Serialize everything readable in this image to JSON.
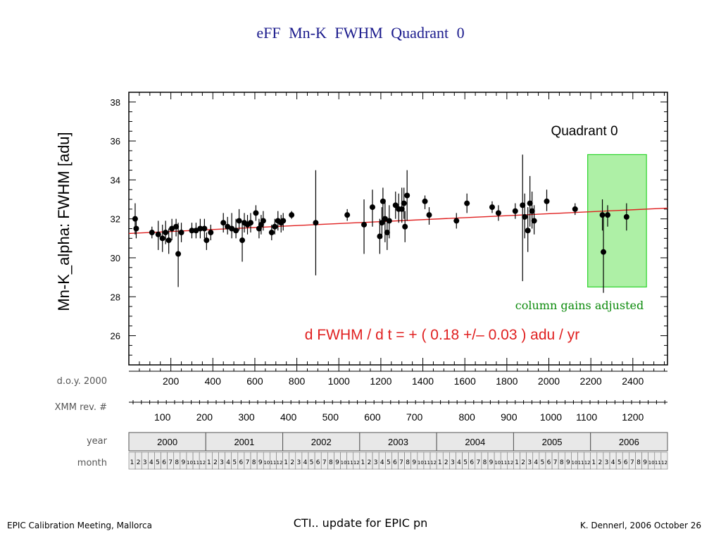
{
  "slide": {
    "title": "eFF   Mn-K   FWHM   Quadrant 0"
  },
  "chart_data": {
    "type": "scatter",
    "ylabel": "Mn-K_alpha:  FWHM  [adu]",
    "ylim": [
      24.5,
      38.5
    ],
    "xlim": [
      0,
      2565
    ],
    "yticks": [
      26,
      28,
      30,
      32,
      34,
      36,
      38
    ],
    "quadrant_label": "Quadrant 0",
    "annotation": "column gains adjusted",
    "fit_label": "d FWHM / d t  = +  ( 0.18 +/– 0.03 )  adu / yr",
    "fit_line": {
      "x": [
        0,
        2565
      ],
      "y": [
        31.25,
        32.55
      ]
    },
    "highlight_region": {
      "x": [
        2185,
        2465
      ],
      "y": [
        28.5,
        35.3
      ]
    },
    "colors": {
      "points": "#000000",
      "fit": "#e02020",
      "highlight_fill": "#aef0a6",
      "highlight_border": "#2bd42b",
      "annotation": "#0b8a0b",
      "fit_label": "#e02020"
    },
    "doy_axis": {
      "label": "d.o.y. 2000",
      "ticks": [
        200,
        400,
        600,
        800,
        1000,
        1200,
        1400,
        1600,
        1800,
        2000,
        2200,
        2400
      ]
    },
    "rev_axis": {
      "label": "XMM rev. #",
      "ticks": [
        "100",
        "200",
        "300",
        "400",
        "500",
        "600",
        "700",
        "800",
        "900",
        "1000",
        "1100",
        "1200"
      ],
      "tick_doy": [
        160,
        360,
        560,
        760,
        960,
        1160,
        1360,
        1610,
        1810,
        2010,
        2180,
        2400
      ]
    },
    "year_axis": {
      "label": "year",
      "years": [
        "2000",
        "2001",
        "2002",
        "2003",
        "2004",
        "2005",
        "2006"
      ]
    },
    "month_axis": {
      "label": "month",
      "months": [
        "1",
        "2",
        "3",
        "4",
        "5",
        "6",
        "7",
        "8",
        "9",
        "10",
        "11",
        "12"
      ]
    },
    "points": [
      {
        "x": 30,
        "y": 32.0,
        "lo": 31.2,
        "hi": 32.8
      },
      {
        "x": 35,
        "y": 31.5,
        "lo": 31.0,
        "hi": 32.0
      },
      {
        "x": 110,
        "y": 31.3,
        "lo": 31.0,
        "hi": 31.6
      },
      {
        "x": 140,
        "y": 31.2,
        "lo": 30.4,
        "hi": 31.9
      },
      {
        "x": 160,
        "y": 31.0,
        "lo": 30.3,
        "hi": 31.7
      },
      {
        "x": 175,
        "y": 31.3,
        "lo": 30.7,
        "hi": 31.9
      },
      {
        "x": 190,
        "y": 30.9,
        "lo": 30.2,
        "hi": 31.5
      },
      {
        "x": 205,
        "y": 31.5,
        "lo": 30.9,
        "hi": 32.0
      },
      {
        "x": 225,
        "y": 31.6,
        "lo": 31.1,
        "hi": 32.0
      },
      {
        "x": 235,
        "y": 30.2,
        "lo": 28.5,
        "hi": 31.8
      },
      {
        "x": 250,
        "y": 31.3,
        "lo": 30.8,
        "hi": 31.8
      },
      {
        "x": 300,
        "y": 31.4,
        "lo": 31.0,
        "hi": 31.8
      },
      {
        "x": 320,
        "y": 31.4,
        "lo": 31.0,
        "hi": 31.8
      },
      {
        "x": 340,
        "y": 31.5,
        "lo": 31.0,
        "hi": 32.0
      },
      {
        "x": 360,
        "y": 31.5,
        "lo": 31.0,
        "hi": 32.0
      },
      {
        "x": 370,
        "y": 30.9,
        "lo": 30.4,
        "hi": 31.3
      },
      {
        "x": 390,
        "y": 31.3,
        "lo": 30.9,
        "hi": 31.7
      },
      {
        "x": 450,
        "y": 31.8,
        "lo": 31.3,
        "hi": 32.3
      },
      {
        "x": 470,
        "y": 31.6,
        "lo": 31.2,
        "hi": 32.1
      },
      {
        "x": 490,
        "y": 31.5,
        "lo": 31.0,
        "hi": 32.3
      },
      {
        "x": 510,
        "y": 31.4,
        "lo": 31.0,
        "hi": 32.0
      },
      {
        "x": 525,
        "y": 31.9,
        "lo": 31.4,
        "hi": 32.5
      },
      {
        "x": 540,
        "y": 30.9,
        "lo": 29.8,
        "hi": 31.9
      },
      {
        "x": 550,
        "y": 31.8,
        "lo": 31.3,
        "hi": 32.3
      },
      {
        "x": 565,
        "y": 31.7,
        "lo": 31.2,
        "hi": 32.2
      },
      {
        "x": 580,
        "y": 31.8,
        "lo": 31.3,
        "hi": 32.3
      },
      {
        "x": 605,
        "y": 32.3,
        "lo": 31.9,
        "hi": 32.7
      },
      {
        "x": 620,
        "y": 31.5,
        "lo": 31.0,
        "hi": 32.0
      },
      {
        "x": 630,
        "y": 31.7,
        "lo": 31.2,
        "hi": 32.2
      },
      {
        "x": 640,
        "y": 31.9,
        "lo": 31.4,
        "hi": 32.4
      },
      {
        "x": 680,
        "y": 31.3,
        "lo": 30.9,
        "hi": 31.7
      },
      {
        "x": 695,
        "y": 31.6,
        "lo": 31.2,
        "hi": 32.0
      },
      {
        "x": 710,
        "y": 31.9,
        "lo": 31.4,
        "hi": 32.4
      },
      {
        "x": 725,
        "y": 31.8,
        "lo": 31.3,
        "hi": 32.2
      },
      {
        "x": 735,
        "y": 31.9,
        "lo": 31.4,
        "hi": 32.3
      },
      {
        "x": 775,
        "y": 32.2,
        "lo": 32.0,
        "hi": 32.4
      },
      {
        "x": 890,
        "y": 31.8,
        "lo": 29.1,
        "hi": 34.5
      },
      {
        "x": 1040,
        "y": 32.2,
        "lo": 31.9,
        "hi": 32.5
      },
      {
        "x": 1120,
        "y": 31.7,
        "lo": 30.2,
        "hi": 33.0
      },
      {
        "x": 1160,
        "y": 32.6,
        "lo": 31.6,
        "hi": 33.5
      },
      {
        "x": 1195,
        "y": 31.1,
        "lo": 30.2,
        "hi": 32.0
      },
      {
        "x": 1205,
        "y": 31.8,
        "lo": 31.0,
        "hi": 32.6
      },
      {
        "x": 1210,
        "y": 32.9,
        "lo": 31.7,
        "hi": 33.6
      },
      {
        "x": 1220,
        "y": 32.0,
        "lo": 30.8,
        "hi": 33.0
      },
      {
        "x": 1230,
        "y": 31.3,
        "lo": 30.4,
        "hi": 32.1
      },
      {
        "x": 1240,
        "y": 31.9,
        "lo": 31.0,
        "hi": 32.7
      },
      {
        "x": 1270,
        "y": 32.7,
        "lo": 32.0,
        "hi": 33.4
      },
      {
        "x": 1285,
        "y": 32.5,
        "lo": 31.8,
        "hi": 33.3
      },
      {
        "x": 1300,
        "y": 32.5,
        "lo": 31.8,
        "hi": 33.6
      },
      {
        "x": 1310,
        "y": 32.8,
        "lo": 32.0,
        "hi": 33.6
      },
      {
        "x": 1315,
        "y": 31.6,
        "lo": 30.8,
        "hi": 32.4
      },
      {
        "x": 1325,
        "y": 33.2,
        "lo": 31.9,
        "hi": 34.5
      },
      {
        "x": 1410,
        "y": 32.9,
        "lo": 32.5,
        "hi": 33.2
      },
      {
        "x": 1430,
        "y": 32.2,
        "lo": 31.7,
        "hi": 32.6
      },
      {
        "x": 1560,
        "y": 31.9,
        "lo": 31.5,
        "hi": 32.3
      },
      {
        "x": 1610,
        "y": 32.8,
        "lo": 32.3,
        "hi": 33.3
      },
      {
        "x": 1730,
        "y": 32.6,
        "lo": 32.3,
        "hi": 32.9
      },
      {
        "x": 1760,
        "y": 32.3,
        "lo": 31.9,
        "hi": 32.7
      },
      {
        "x": 1840,
        "y": 32.4,
        "lo": 32.0,
        "hi": 32.8
      },
      {
        "x": 1875,
        "y": 32.7,
        "lo": 28.8,
        "hi": 35.3
      },
      {
        "x": 1885,
        "y": 32.1,
        "lo": 31.0,
        "hi": 33.3
      },
      {
        "x": 1900,
        "y": 31.4,
        "lo": 30.3,
        "hi": 32.6
      },
      {
        "x": 1910,
        "y": 32.8,
        "lo": 31.6,
        "hi": 34.2
      },
      {
        "x": 1920,
        "y": 32.4,
        "lo": 31.5,
        "hi": 33.4
      },
      {
        "x": 1930,
        "y": 31.9,
        "lo": 31.2,
        "hi": 32.7
      },
      {
        "x": 1990,
        "y": 32.9,
        "lo": 32.4,
        "hi": 33.5
      },
      {
        "x": 2125,
        "y": 32.5,
        "lo": 32.2,
        "hi": 32.8
      },
      {
        "x": 2255,
        "y": 32.2,
        "lo": 31.4,
        "hi": 33.0
      },
      {
        "x": 2260,
        "y": 30.3,
        "lo": 28.2,
        "hi": 32.2
      },
      {
        "x": 2280,
        "y": 32.2,
        "lo": 31.6,
        "hi": 32.7
      },
      {
        "x": 2370,
        "y": 32.1,
        "lo": 31.4,
        "hi": 32.8
      }
    ]
  },
  "footer": {
    "left": "EPIC Calibration Meeting, Mallorca",
    "center": "CTI.. update for EPIC pn",
    "right": "K. Dennerl, 2006 October 26"
  }
}
